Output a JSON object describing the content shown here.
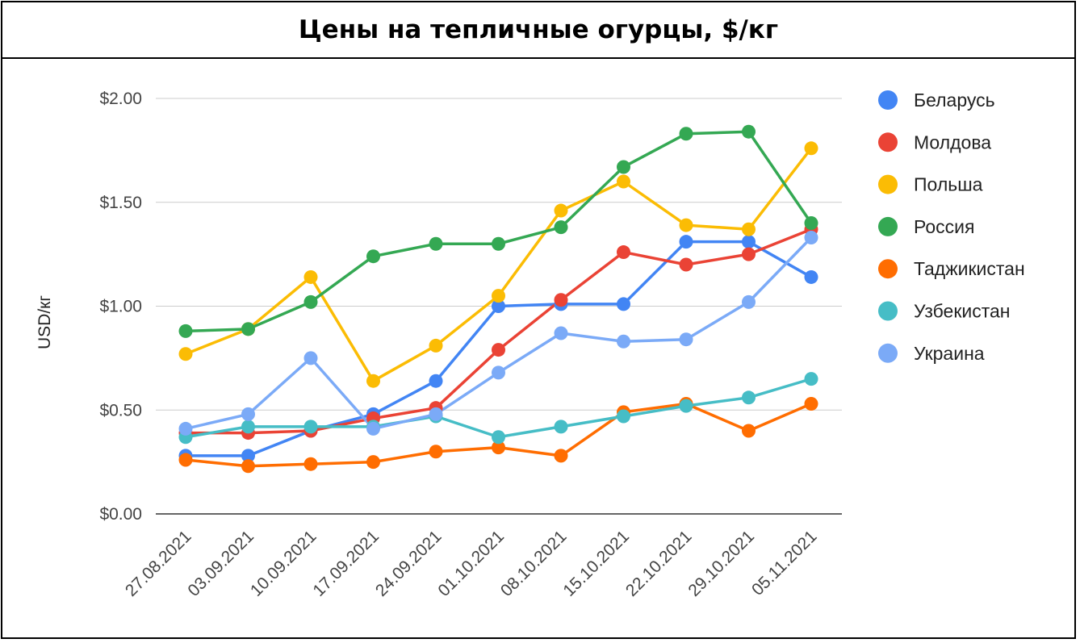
{
  "chart_data": {
    "type": "line",
    "title": "Цены на тепличные огурцы, $/кг",
    "xlabel": "",
    "ylabel": "USD/кг",
    "ylim": [
      0,
      2
    ],
    "y_ticks": [
      "$0.00",
      "$0.50",
      "$1.00",
      "$1.50",
      "$2.00"
    ],
    "y_tick_values": [
      0,
      0.5,
      1.0,
      1.5,
      2.0
    ],
    "grid": true,
    "legend_position": "right",
    "categories": [
      "27.08.2021",
      "03.09.2021",
      "10.09.2021",
      "17.09.2021",
      "24.09.2021",
      "01.10.2021",
      "08.10.2021",
      "15.10.2021",
      "22.10.2021",
      "29.10.2021",
      "05.11.2021"
    ],
    "series": [
      {
        "name": "Беларусь",
        "color": "#4285f4",
        "values": [
          0.28,
          0.28,
          0.4,
          0.48,
          0.64,
          1.0,
          1.01,
          1.01,
          1.31,
          1.31,
          1.14
        ]
      },
      {
        "name": "Молдова",
        "color": "#ea4335",
        "values": [
          0.39,
          0.39,
          0.4,
          0.46,
          0.51,
          0.79,
          1.03,
          1.26,
          1.2,
          1.25,
          1.37
        ]
      },
      {
        "name": "Польша",
        "color": "#fbbc04",
        "values": [
          0.77,
          0.89,
          1.14,
          0.64,
          0.81,
          1.05,
          1.46,
          1.6,
          1.39,
          1.37,
          1.76
        ]
      },
      {
        "name": "Россия",
        "color": "#34a853",
        "values": [
          0.88,
          0.89,
          1.02,
          1.24,
          1.3,
          1.3,
          1.38,
          1.67,
          1.83,
          1.84,
          1.4
        ]
      },
      {
        "name": "Таджикистан",
        "color": "#ff6d01",
        "values": [
          0.26,
          0.23,
          0.24,
          0.25,
          0.3,
          0.32,
          0.28,
          0.49,
          0.53,
          0.4,
          0.53
        ]
      },
      {
        "name": "Узбекистан",
        "color": "#46bdc6",
        "values": [
          0.37,
          0.42,
          0.42,
          0.42,
          0.47,
          0.37,
          0.42,
          0.47,
          0.52,
          0.56,
          0.65
        ]
      },
      {
        "name": "Украина",
        "color": "#7baaf7",
        "values": [
          0.41,
          0.48,
          0.75,
          0.41,
          0.48,
          0.68,
          0.87,
          0.83,
          0.84,
          1.02,
          1.33
        ]
      }
    ]
  }
}
